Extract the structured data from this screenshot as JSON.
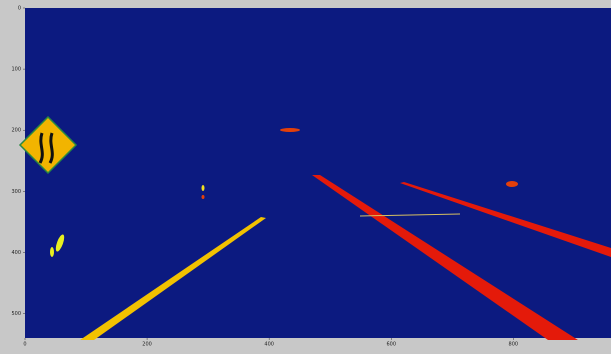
{
  "chart_data": {
    "type": "image",
    "xlim": [
      0,
      960
    ],
    "ylim": [
      540,
      0
    ],
    "xticks": [
      0,
      200,
      400,
      600,
      800
    ],
    "yticks": [
      0,
      100,
      200,
      300,
      400,
      500
    ]
  }
}
